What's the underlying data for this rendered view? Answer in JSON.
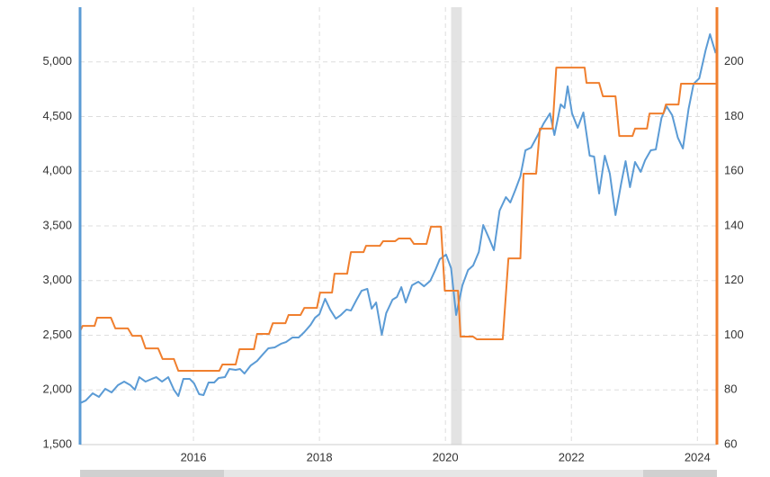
{
  "chart_data": {
    "type": "line",
    "xlim": [
      2014.2,
      2024.31
    ],
    "xticks": [
      2016,
      2018,
      2020,
      2022,
      2024
    ],
    "ylim": [
      1500,
      5500
    ],
    "yticks": [
      {
        "value": 1500,
        "label": "1,500"
      },
      {
        "value": 2000,
        "label": "2,000"
      },
      {
        "value": 2500,
        "label": "2,500"
      },
      {
        "value": 3000,
        "label": "3,000"
      },
      {
        "value": 3500,
        "label": "3,500"
      },
      {
        "value": 4000,
        "label": "4,000"
      },
      {
        "value": 4500,
        "label": "4,500"
      },
      {
        "value": 5000,
        "label": "5,000"
      }
    ],
    "y2lim": [
      60,
      220
    ],
    "y2ticks": [
      60,
      80,
      100,
      120,
      140,
      160,
      180,
      200
    ],
    "grid": true,
    "shaded_ranges": [
      [
        2020.09,
        2020.26
      ]
    ],
    "series": [
      {
        "color": "#5b9bd5",
        "x": [
          2014.2,
          2014.29,
          2014.4,
          2014.5,
          2014.6,
          2014.7,
          2014.8,
          2014.9,
          2015.0,
          2015.07,
          2015.14,
          2015.24,
          2015.34,
          2015.41,
          2015.5,
          2015.6,
          2015.69,
          2015.76,
          2015.84,
          2015.94,
          2016.01,
          2016.09,
          2016.16,
          2016.24,
          2016.33,
          2016.4,
          2016.5,
          2016.57,
          2016.67,
          2016.74,
          2016.81,
          2016.91,
          2017.01,
          2017.11,
          2017.19,
          2017.29,
          2017.39,
          2017.47,
          2017.57,
          2017.67,
          2017.76,
          2017.86,
          2017.93,
          2018.0,
          2018.09,
          2018.17,
          2018.26,
          2018.34,
          2018.43,
          2018.5,
          2018.59,
          2018.67,
          2018.76,
          2018.83,
          2018.9,
          2018.99,
          2019.06,
          2019.16,
          2019.23,
          2019.3,
          2019.37,
          2019.47,
          2019.57,
          2019.66,
          2019.76,
          2019.84,
          2019.91,
          2020.01,
          2020.09,
          2020.17,
          2020.27,
          2020.36,
          2020.44,
          2020.53,
          2020.6,
          2020.7,
          2020.77,
          2020.86,
          2020.96,
          2021.03,
          2021.11,
          2021.19,
          2021.27,
          2021.36,
          2021.46,
          2021.56,
          2021.66,
          2021.73,
          2021.83,
          2021.89,
          2021.94,
          2022.01,
          2022.1,
          2022.19,
          2022.29,
          2022.36,
          2022.44,
          2022.53,
          2022.61,
          2022.7,
          2022.79,
          2022.86,
          2022.93,
          2023.01,
          2023.1,
          2023.17,
          2023.26,
          2023.34,
          2023.43,
          2023.51,
          2023.6,
          2023.69,
          2023.77,
          2023.86,
          2023.94,
          2024.03,
          2024.13,
          2024.2,
          2024.29
        ],
        "values": [
          1879,
          1903,
          1969,
          1936,
          2010,
          1977,
          2043,
          2076,
          2043,
          2002,
          2117,
          2076,
          2101,
          2117,
          2076,
          2117,
          2002,
          1944,
          2101,
          2101,
          2060,
          1961,
          1953,
          2068,
          2068,
          2109,
          2117,
          2191,
          2183,
          2191,
          2150,
          2224,
          2265,
          2331,
          2381,
          2389,
          2422,
          2438,
          2479,
          2479,
          2529,
          2595,
          2660,
          2693,
          2833,
          2735,
          2652,
          2685,
          2735,
          2726,
          2825,
          2907,
          2924,
          2743,
          2800,
          2504,
          2702,
          2825,
          2850,
          2940,
          2800,
          2957,
          2990,
          2948,
          2998,
          3097,
          3195,
          3237,
          3113,
          2685,
          2957,
          3097,
          3138,
          3261,
          3508,
          3376,
          3278,
          3640,
          3763,
          3714,
          3829,
          3953,
          4191,
          4216,
          4323,
          4438,
          4529,
          4331,
          4611,
          4578,
          4776,
          4529,
          4397,
          4537,
          4142,
          4134,
          3796,
          4142,
          3977,
          3599,
          3887,
          4092,
          3854,
          4084,
          3994,
          4101,
          4191,
          4199,
          4487,
          4594,
          4512,
          4306,
          4208,
          4570,
          4800,
          4850,
          5105,
          5253,
          5080
        ]
      },
      {
        "color": "#f07f2e",
        "axis": "y2",
        "x": [
          2014.2,
          2014.24,
          2014.43,
          2014.47,
          2014.69,
          2014.76,
          2014.96,
          2015.03,
          2015.17,
          2015.24,
          2015.44,
          2015.51,
          2015.69,
          2015.76,
          2016.21,
          2016.41,
          2016.46,
          2016.67,
          2016.73,
          2016.96,
          2017.01,
          2017.2,
          2017.26,
          2017.46,
          2017.51,
          2017.7,
          2017.76,
          2017.96,
          2018.01,
          2018.2,
          2018.24,
          2018.44,
          2018.5,
          2018.7,
          2018.74,
          2018.96,
          2019.01,
          2019.2,
          2019.26,
          2019.44,
          2019.5,
          2019.7,
          2019.77,
          2019.93,
          2019.99,
          2020.2,
          2020.24,
          2020.44,
          2020.5,
          2020.91,
          2021.0,
          2021.19,
          2021.24,
          2021.44,
          2021.5,
          2021.7,
          2021.76,
          2022.21,
          2022.24,
          2022.44,
          2022.5,
          2022.7,
          2022.76,
          2022.97,
          2023.01,
          2023.2,
          2023.24,
          2023.46,
          2023.5,
          2023.7,
          2023.74,
          2024.29
        ],
        "values": [
          101.5,
          103.4,
          103.4,
          106.4,
          106.4,
          102.5,
          102.5,
          99.8,
          99.8,
          95.2,
          95.2,
          91.3,
          91.3,
          87.0,
          87.0,
          87.0,
          89.3,
          89.3,
          94.9,
          94.9,
          100.5,
          100.5,
          104.4,
          104.4,
          107.4,
          107.4,
          110,
          110,
          115.6,
          115.6,
          122.5,
          122.5,
          130.4,
          130.4,
          132.7,
          132.7,
          134.4,
          134.4,
          135.4,
          135.4,
          133.4,
          133.4,
          139.7,
          139.7,
          116.3,
          116.3,
          99.5,
          99.5,
          98.5,
          98.5,
          128.1,
          128.1,
          159.1,
          159.1,
          175.6,
          175.6,
          197.9,
          197.9,
          192.3,
          192.3,
          187.4,
          187.4,
          172.9,
          172.9,
          175.6,
          175.6,
          181.1,
          181.1,
          184.4,
          184.4,
          192.0,
          192.0
        ]
      }
    ]
  }
}
